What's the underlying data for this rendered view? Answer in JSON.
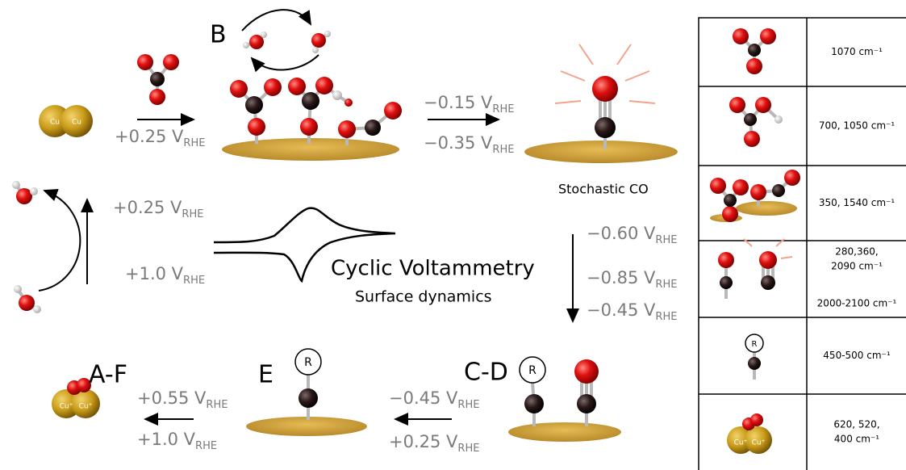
{
  "stages": [
    "B",
    "C-D",
    "E",
    "A-F"
  ],
  "atoms": {
    "cu": "Cu",
    "cu_plus": "Cu⁺",
    "r": "R"
  },
  "potentials": [
    {
      "value": "+0.25 V",
      "sub": "RHE"
    },
    {
      "value": "−0.15 V",
      "sub": "RHE"
    },
    {
      "value": "−0.35 V",
      "sub": "RHE"
    },
    {
      "value": "+0.25 V",
      "sub": "RHE"
    },
    {
      "value": "+1.0 V",
      "sub": "RHE"
    },
    {
      "value": "−0.60 V",
      "sub": "RHE"
    },
    {
      "value": "−0.85 V",
      "sub": "RHE"
    },
    {
      "value": "−0.45 V",
      "sub": "RHE"
    },
    {
      "value": "+0.55 V",
      "sub": "RHE"
    },
    {
      "value": "+1.0 V",
      "sub": "RHE"
    },
    {
      "value": "−0.45 V",
      "sub": "RHE"
    },
    {
      "value": "+0.25 V",
      "sub": "RHE"
    }
  ],
  "captions": {
    "stochastic": "Stochastic CO",
    "cv_title": "Cyclic Voltammetry",
    "cv_subtitle": "Surface dynamics"
  },
  "table": {
    "rows": [
      [
        "1070 cm⁻¹"
      ],
      [
        "700, 1050 cm⁻¹"
      ],
      [
        "350, 1540 cm⁻¹"
      ],
      [
        "280,360,",
        "2090 cm⁻¹",
        "2000-2100 cm⁻¹"
      ],
      [
        "450-500 cm⁻¹"
      ],
      [
        "620, 520,",
        "400 cm⁻¹"
      ]
    ]
  }
}
